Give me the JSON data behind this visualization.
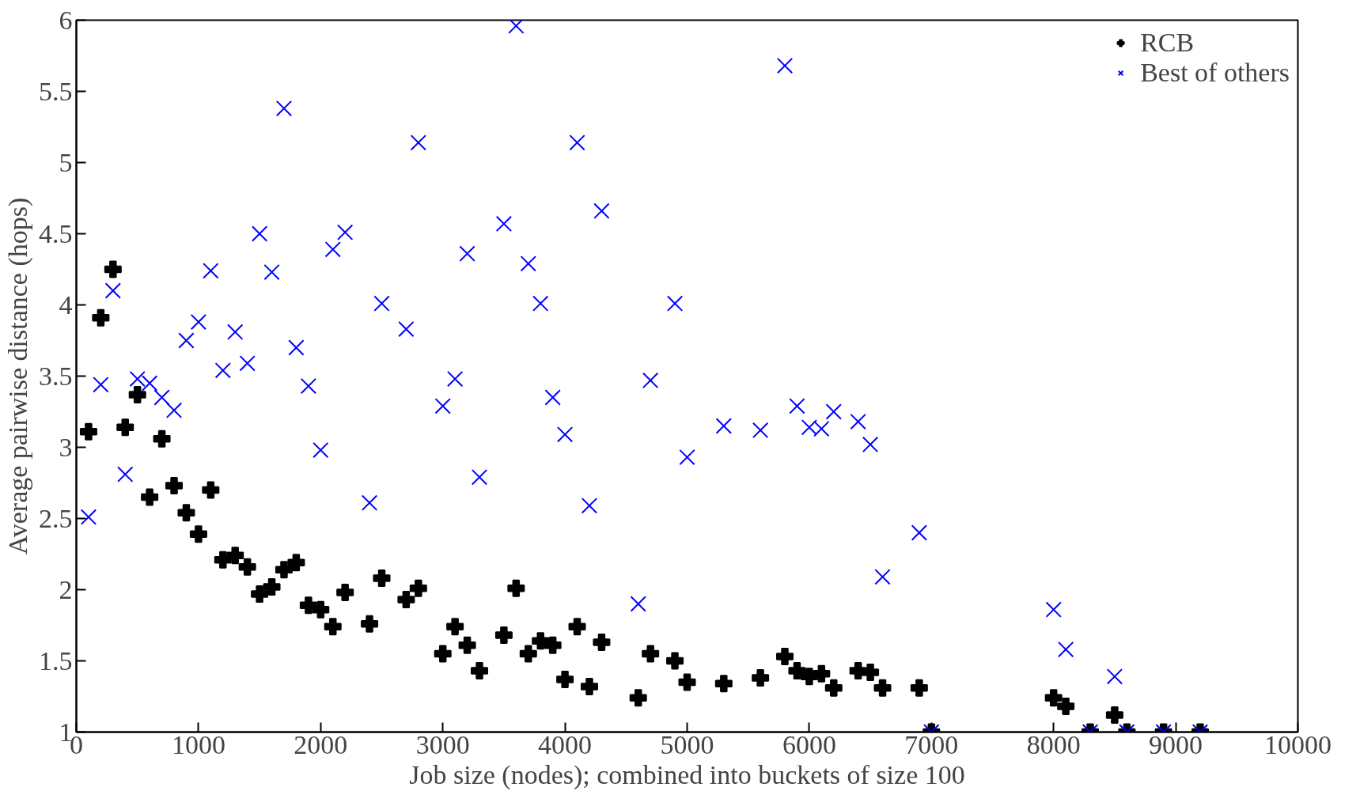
{
  "chart_data": {
    "type": "scatter",
    "xlabel": "Job size (nodes); combined into buckets of size 100",
    "ylabel": "Average pairwise distance (hops)",
    "xlim": [
      0,
      10000
    ],
    "ylim": [
      1,
      6
    ],
    "xticks": [
      0,
      1000,
      2000,
      3000,
      4000,
      5000,
      6000,
      7000,
      8000,
      9000,
      10000
    ],
    "yticks": [
      1,
      1.5,
      2,
      2.5,
      3,
      3.5,
      4,
      4.5,
      5,
      5.5,
      6
    ],
    "grid": false,
    "legend": "top right",
    "series": [
      {
        "name": "RCB",
        "color": "#000000",
        "marker": "cross",
        "x": [
          100,
          200,
          300,
          400,
          500,
          600,
          700,
          800,
          900,
          1000,
          1100,
          1200,
          1300,
          1400,
          1500,
          1600,
          1700,
          1800,
          1900,
          2000,
          2100,
          2200,
          2400,
          2500,
          2700,
          2800,
          3000,
          3100,
          3200,
          3300,
          3500,
          3600,
          3700,
          3800,
          3900,
          4000,
          4100,
          4200,
          4300,
          4600,
          4700,
          4900,
          5000,
          5300,
          5600,
          5800,
          5900,
          6000,
          6100,
          6200,
          6400,
          6500,
          6600,
          6900,
          7000,
          8000,
          8100,
          8300,
          8500,
          8600,
          8900,
          9200
        ],
        "values": [
          3.11,
          3.91,
          4.25,
          3.14,
          3.37,
          2.65,
          3.06,
          2.73,
          2.54,
          2.39,
          2.7,
          2.21,
          2.24,
          2.16,
          1.97,
          2.02,
          2.14,
          2.19,
          1.89,
          1.86,
          1.74,
          1.98,
          1.76,
          2.08,
          1.93,
          2.01,
          1.55,
          1.74,
          1.61,
          1.43,
          1.68,
          2.01,
          1.55,
          1.64,
          1.61,
          1.37,
          1.74,
          1.32,
          1.63,
          1.24,
          1.55,
          1.5,
          1.35,
          1.34,
          1.38,
          1.53,
          1.43,
          1.39,
          1.41,
          1.31,
          1.43,
          1.42,
          1.31,
          1.31,
          1.0,
          1.24,
          1.18,
          1.0,
          1.12,
          1.0,
          1.0,
          1.0
        ]
      },
      {
        "name": "Best of others",
        "color": "#0000ff",
        "marker": "x",
        "x": [
          100,
          200,
          300,
          400,
          500,
          600,
          700,
          800,
          900,
          1000,
          1100,
          1200,
          1300,
          1400,
          1500,
          1600,
          1700,
          1800,
          1900,
          2000,
          2100,
          2200,
          2400,
          2500,
          2700,
          2800,
          3000,
          3100,
          3200,
          3300,
          3500,
          3600,
          3700,
          3800,
          3900,
          4000,
          4100,
          4200,
          4300,
          4600,
          4700,
          4900,
          5000,
          5300,
          5600,
          5800,
          5900,
          6000,
          6100,
          6200,
          6400,
          6500,
          6600,
          6900,
          7000,
          8000,
          8100,
          8300,
          8500,
          8600,
          8900,
          9200
        ],
        "values": [
          2.51,
          3.44,
          4.1,
          2.81,
          3.48,
          3.45,
          3.35,
          3.26,
          3.75,
          3.88,
          4.24,
          3.54,
          3.81,
          3.59,
          4.5,
          4.23,
          5.38,
          3.7,
          3.43,
          2.98,
          4.39,
          4.51,
          2.61,
          4.01,
          3.83,
          5.14,
          3.29,
          3.48,
          4.36,
          2.79,
          4.57,
          5.96,
          4.29,
          4.01,
          3.35,
          3.09,
          5.14,
          2.59,
          4.66,
          1.9,
          3.47,
          4.01,
          2.93,
          3.15,
          3.12,
          5.68,
          3.29,
          3.14,
          3.13,
          3.25,
          3.18,
          3.02,
          2.09,
          2.4,
          1.0,
          1.86,
          1.58,
          1.0,
          1.39,
          1.0,
          1.0,
          1.0
        ]
      }
    ]
  }
}
